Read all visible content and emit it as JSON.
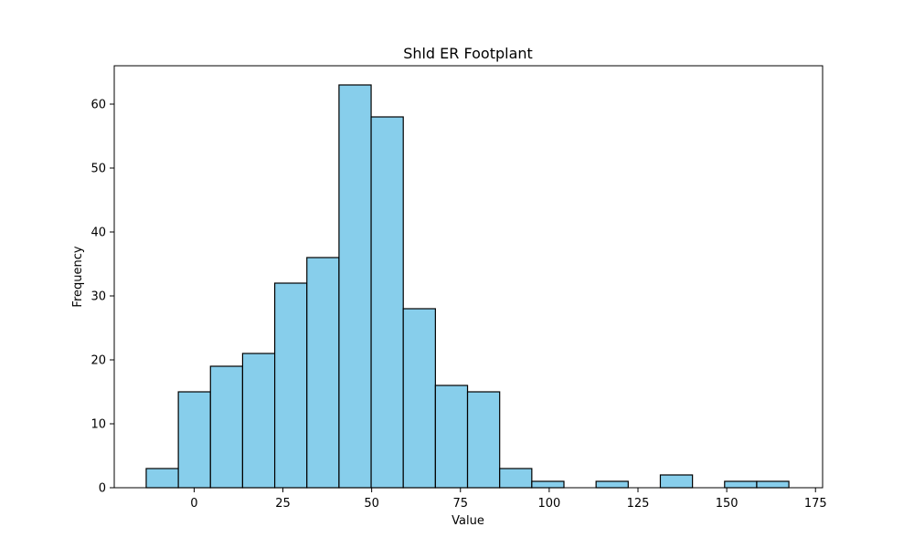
{
  "chart_data": {
    "type": "bar",
    "title": "Shld ER Footplant",
    "xlabel": "Value",
    "ylabel": "Frequency",
    "bar_color": "#87ceeb",
    "edge_color": "#000000",
    "bin_start": -13.5,
    "bin_width": 9.05,
    "values": [
      3,
      15,
      19,
      21,
      32,
      36,
      63,
      58,
      28,
      16,
      15,
      3,
      1,
      0,
      1,
      0,
      2,
      0,
      1,
      1
    ],
    "xlim": [
      -22.5,
      177
    ],
    "ylim": [
      0,
      66
    ],
    "xticks": [
      0,
      25,
      50,
      75,
      100,
      125,
      150,
      175
    ],
    "yticks": [
      0,
      10,
      20,
      30,
      40,
      50,
      60
    ],
    "grid": false
  }
}
